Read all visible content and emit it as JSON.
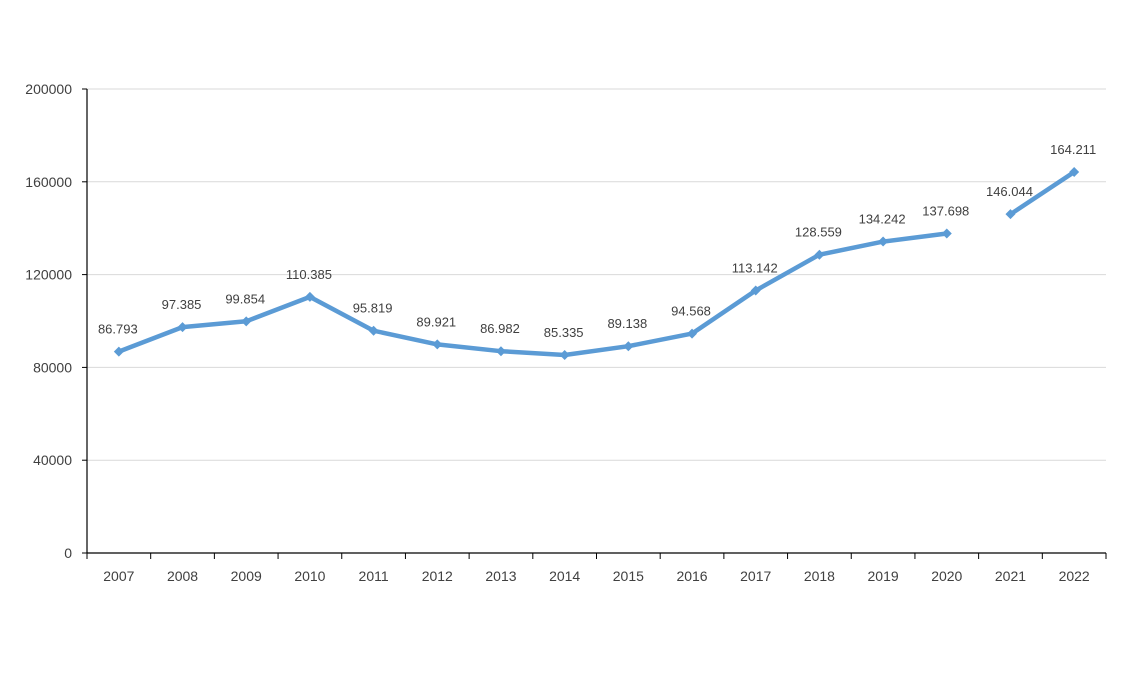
{
  "chart_data": {
    "type": "line",
    "title": "",
    "xlabel": "",
    "ylabel": "",
    "ylim": [
      0,
      200000
    ],
    "yticks": [
      0,
      40000,
      80000,
      120000,
      160000,
      200000
    ],
    "ytick_labels": [
      "0",
      "40000",
      "80000",
      "120000",
      "160000",
      "200000"
    ],
    "grid": true,
    "legend": "none",
    "categories": [
      "2007",
      "2008",
      "2009",
      "2010",
      "2011",
      "2012",
      "2013",
      "2014",
      "2015",
      "2016",
      "2017",
      "2018",
      "2019",
      "2020",
      "2021",
      "2022"
    ],
    "series": [
      {
        "values": [
          86793,
          97385,
          99854,
          110385,
          95819,
          89921,
          86982,
          85335,
          89138,
          94568,
          113142,
          128559,
          134242,
          137698,
          146044,
          164211
        ],
        "labels": [
          "86.793",
          "97.385",
          "99.854",
          "110.385",
          "95.819",
          "89.921",
          "86.982",
          "85.335",
          "89.138",
          "94.568",
          "113.142",
          "128.559",
          "134.242",
          "137.698",
          "146.044",
          "164.211"
        ],
        "color": "#5b9bd5",
        "gap_after_index": 13
      }
    ],
    "colors": {
      "line": "#5b9bd5",
      "grid": "#d9d9d9",
      "axis": "#000000",
      "text": "#404040"
    }
  }
}
